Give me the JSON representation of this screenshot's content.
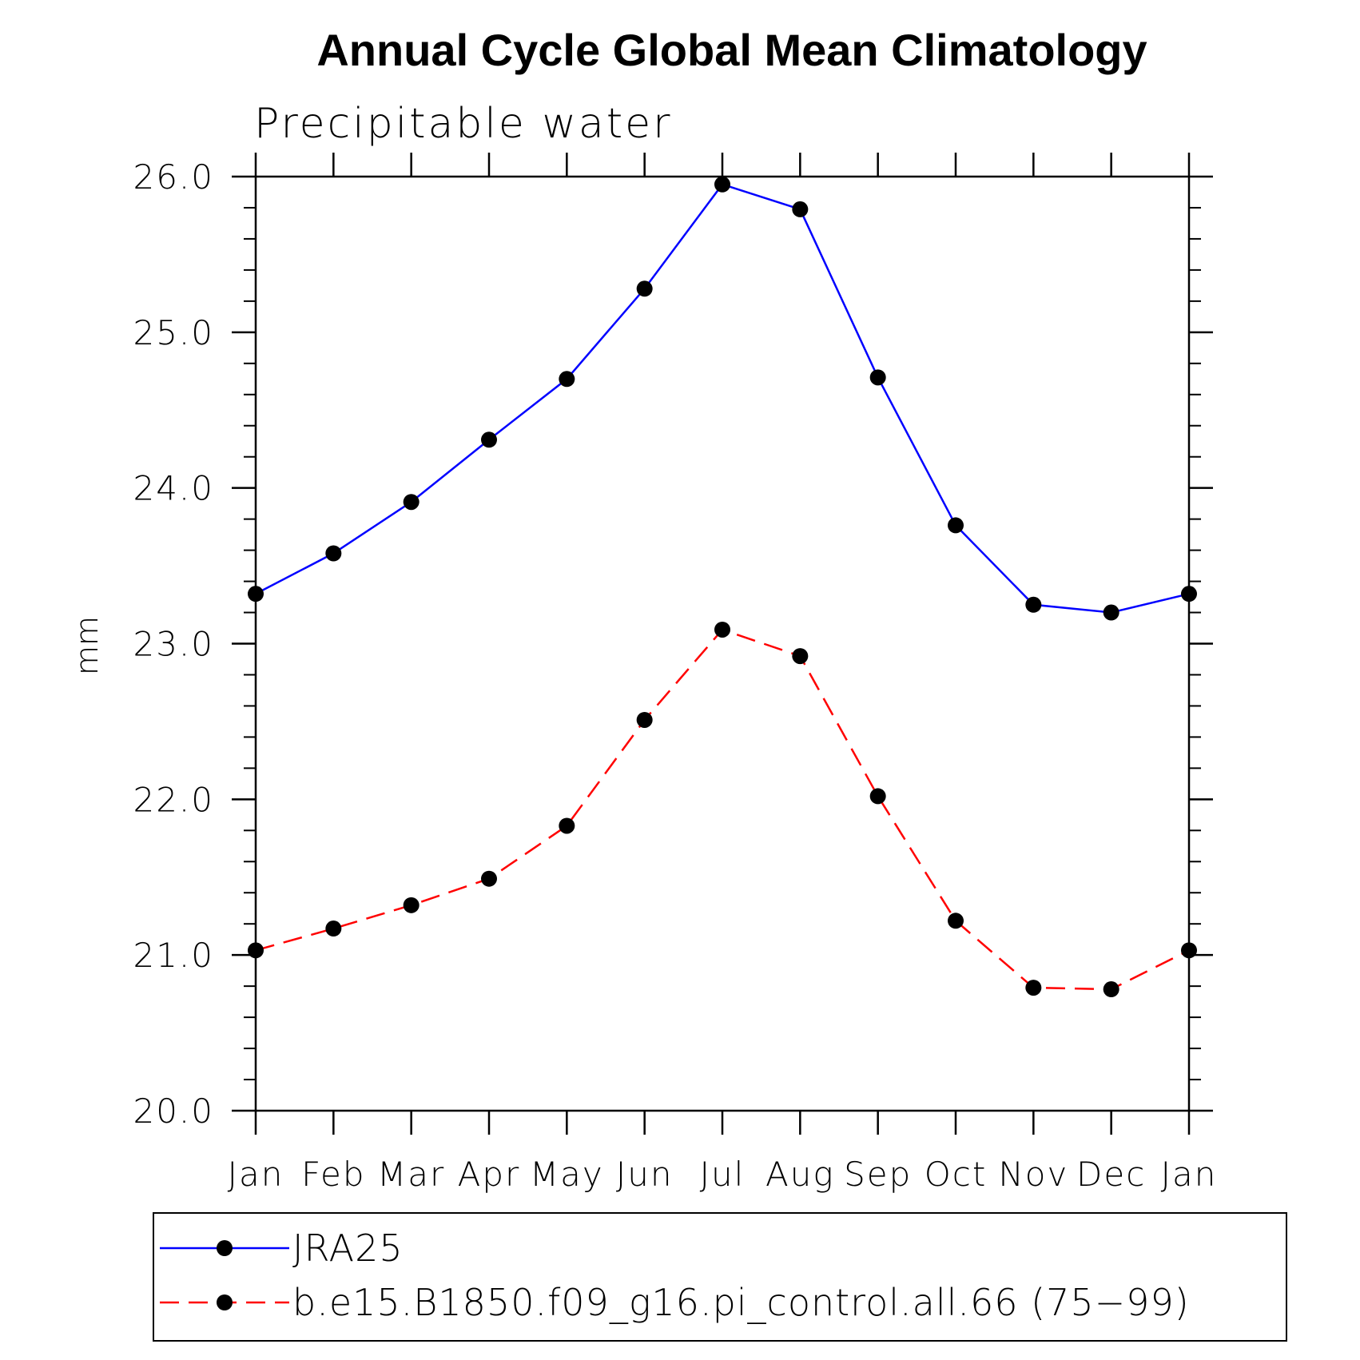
{
  "chart_data": {
    "type": "line",
    "title": "Annual Cycle Global Mean Climatology",
    "subtitle": "Precipitable water",
    "xlabel": "",
    "ylabel": "mm",
    "categories": [
      "Jan",
      "Feb",
      "Mar",
      "Apr",
      "May",
      "Jun",
      "Jul",
      "Aug",
      "Sep",
      "Oct",
      "Nov",
      "Dec",
      "Jan"
    ],
    "ylim": [
      20.0,
      26.0
    ],
    "yticks": [
      "20.0",
      "21.0",
      "22.0",
      "23.0",
      "24.0",
      "25.0",
      "26.0"
    ],
    "grid": false,
    "legend_position": "bottom",
    "series": [
      {
        "name": "JRA25",
        "color": "#0000ff",
        "line_style": "solid",
        "marker": "filled-circle",
        "values": [
          23.32,
          23.58,
          23.91,
          24.31,
          24.7,
          25.28,
          25.95,
          25.79,
          24.71,
          23.76,
          23.25,
          23.2,
          23.32
        ]
      },
      {
        "name": "b.e15.B1850.f09_g16.pi_control.all.66 (75−99)",
        "color": "#ff0000",
        "line_style": "dashed",
        "marker": "filled-circle",
        "values": [
          21.03,
          21.17,
          21.32,
          21.49,
          21.83,
          22.51,
          23.09,
          22.92,
          22.02,
          21.22,
          20.79,
          20.78,
          21.03
        ]
      }
    ]
  }
}
